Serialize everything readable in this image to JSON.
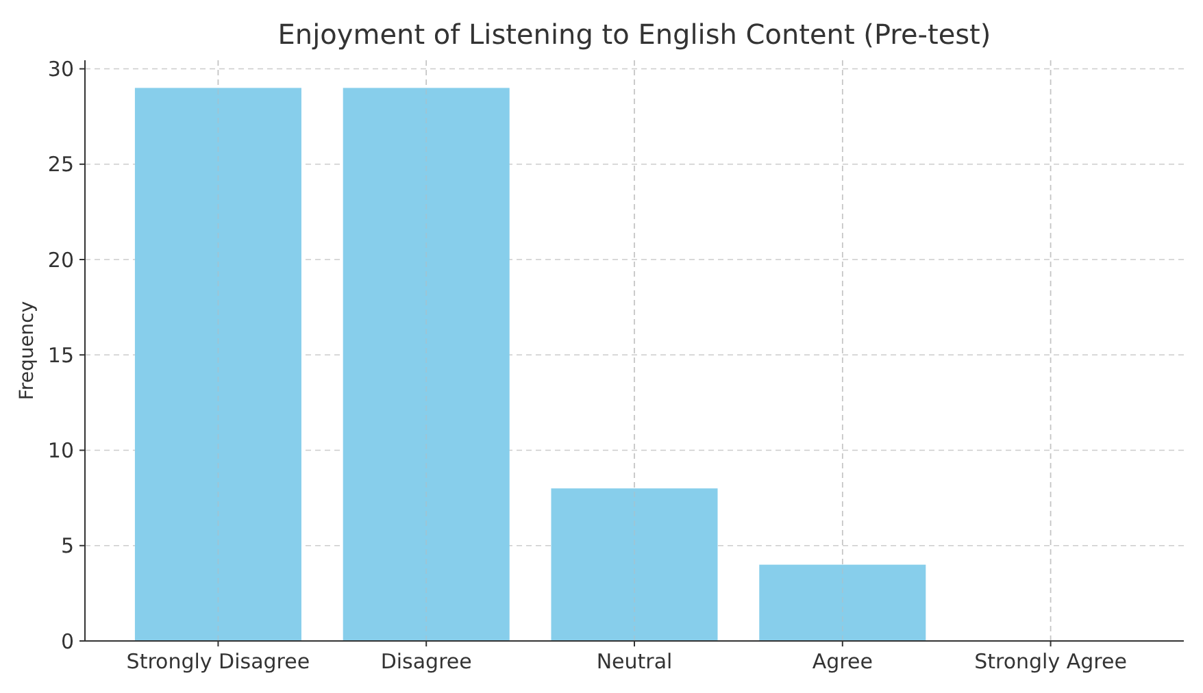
{
  "chart_data": {
    "type": "bar",
    "title": "Enjoyment of Listening to English Content (Pre-test)",
    "ylabel": "Frequency",
    "categories": [
      "Strongly Disagree",
      "Disagree",
      "Neutral",
      "Agree",
      "Strongly Agree"
    ],
    "values": [
      29,
      29,
      8,
      4,
      0
    ],
    "color": "#87ceeb",
    "ylim": [
      0,
      30.45
    ],
    "yticks": [
      0,
      5,
      10,
      15,
      20,
      25,
      30
    ],
    "grid": true
  }
}
